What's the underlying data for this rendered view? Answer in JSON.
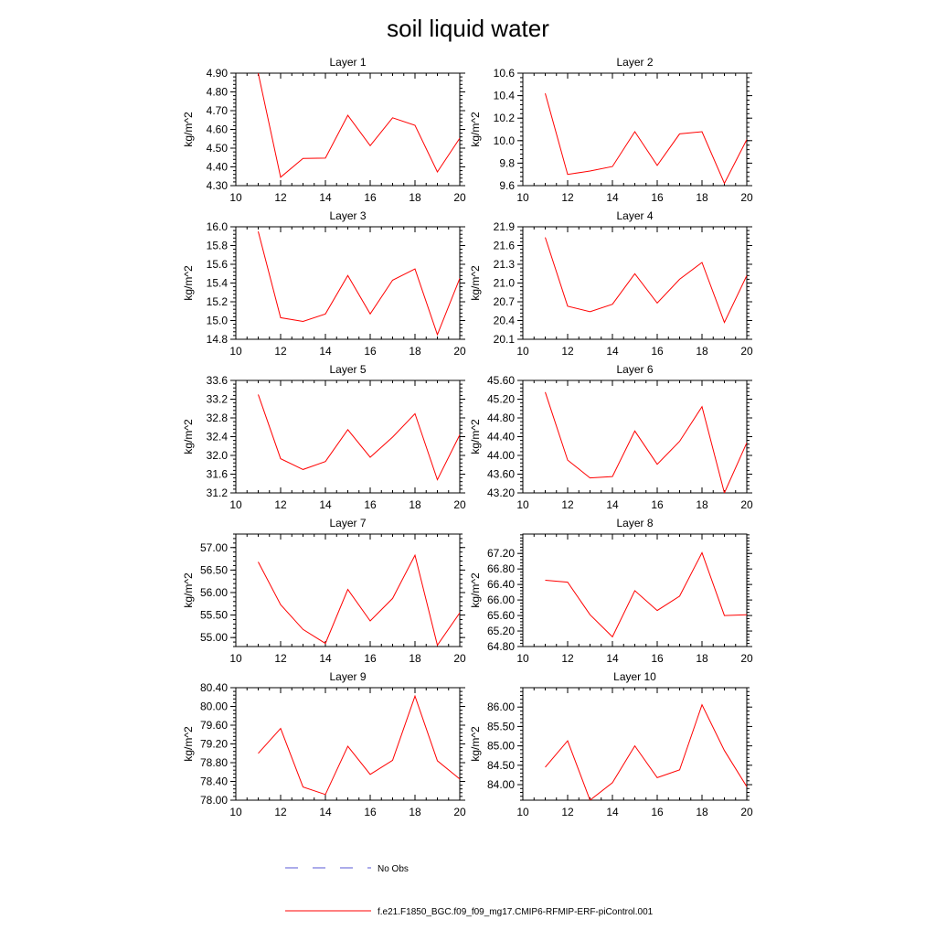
{
  "title": "soil liquid water",
  "ylabel": "kg/m^2",
  "line_color": "#ff0000",
  "obs_color": "#5a5ad6",
  "legend": {
    "no_obs_label": "No Obs",
    "run_label": "f.e21.F1850_BGC.f09_f09_mg17.CMIP6-RFMIP-ERF-piControl.001"
  },
  "chart_data": [
    {
      "type": "line",
      "subtitle": "Layer 1",
      "xlim": [
        10,
        20
      ],
      "ylim": [
        4.3,
        4.9
      ],
      "xticks": [
        "10",
        "12",
        "14",
        "16",
        "18",
        "20"
      ],
      "yticks": [
        "4.30",
        "4.40",
        "4.50",
        "4.60",
        "4.70",
        "4.80",
        "4.90"
      ],
      "x": [
        11,
        12,
        13,
        14,
        15,
        16,
        17,
        18,
        19,
        20
      ],
      "y": [
        4.9,
        4.345,
        4.445,
        4.447,
        4.675,
        4.513,
        4.662,
        4.622,
        4.373,
        4.553
      ]
    },
    {
      "type": "line",
      "subtitle": "Layer 2",
      "xlim": [
        10,
        20
      ],
      "ylim": [
        9.6,
        10.6
      ],
      "xticks": [
        "10",
        "12",
        "14",
        "16",
        "18",
        "20"
      ],
      "yticks": [
        "9.6",
        "9.8",
        "10.0",
        "10.2",
        "10.4",
        "10.6"
      ],
      "x": [
        11,
        12,
        13,
        14,
        15,
        16,
        17,
        18,
        19,
        20
      ],
      "y": [
        10.42,
        9.7,
        9.73,
        9.77,
        10.08,
        9.78,
        10.06,
        10.08,
        9.62,
        10.01
      ]
    },
    {
      "type": "line",
      "subtitle": "Layer 3",
      "xlim": [
        10,
        20
      ],
      "ylim": [
        14.8,
        16.0
      ],
      "xticks": [
        "10",
        "12",
        "14",
        "16",
        "18",
        "20"
      ],
      "yticks": [
        "14.8",
        "15.0",
        "15.2",
        "15.4",
        "15.6",
        "15.8",
        "16.0"
      ],
      "x": [
        11,
        12,
        13,
        14,
        15,
        16,
        17,
        18,
        19,
        20
      ],
      "y": [
        15.95,
        15.03,
        14.99,
        15.07,
        15.48,
        15.07,
        15.43,
        15.55,
        14.85,
        15.45
      ]
    },
    {
      "type": "line",
      "subtitle": "Layer 4",
      "xlim": [
        10,
        20
      ],
      "ylim": [
        20.1,
        21.9
      ],
      "xticks": [
        "10",
        "12",
        "14",
        "16",
        "18",
        "20"
      ],
      "yticks": [
        "20.1",
        "20.4",
        "20.7",
        "21.0",
        "21.3",
        "21.6",
        "21.9"
      ],
      "x": [
        11,
        12,
        13,
        14,
        15,
        16,
        17,
        18,
        19,
        20
      ],
      "y": [
        21.73,
        20.63,
        20.54,
        20.66,
        21.15,
        20.68,
        21.06,
        21.33,
        20.37,
        21.12
      ]
    },
    {
      "type": "line",
      "subtitle": "Layer 5",
      "xlim": [
        10,
        20
      ],
      "ylim": [
        31.2,
        33.6
      ],
      "xticks": [
        "10",
        "12",
        "14",
        "16",
        "18",
        "20"
      ],
      "yticks": [
        "31.2",
        "31.6",
        "32.0",
        "32.4",
        "32.8",
        "33.2",
        "33.6"
      ],
      "x": [
        11,
        12,
        13,
        14,
        15,
        16,
        17,
        18,
        19,
        20
      ],
      "y": [
        33.3,
        31.93,
        31.7,
        31.87,
        32.55,
        31.96,
        32.39,
        32.89,
        31.48,
        32.44
      ]
    },
    {
      "type": "line",
      "subtitle": "Layer 6",
      "xlim": [
        10,
        20
      ],
      "ylim": [
        43.2,
        45.6
      ],
      "xticks": [
        "10",
        "12",
        "14",
        "16",
        "18",
        "20"
      ],
      "yticks": [
        "43.20",
        "43.60",
        "44.00",
        "44.40",
        "44.80",
        "45.20",
        "45.60"
      ],
      "x": [
        11,
        12,
        13,
        14,
        15,
        16,
        17,
        18,
        19,
        20
      ],
      "y": [
        45.35,
        43.9,
        43.52,
        43.55,
        44.52,
        43.81,
        44.3,
        45.04,
        43.2,
        44.27
      ]
    },
    {
      "type": "line",
      "subtitle": "Layer 7",
      "xlim": [
        10,
        20
      ],
      "ylim": [
        54.8,
        57.3
      ],
      "xticks": [
        "10",
        "12",
        "14",
        "16",
        "18",
        "20"
      ],
      "yticks": [
        "55.00",
        "55.50",
        "56.00",
        "56.50",
        "57.00"
      ],
      "x": [
        11,
        12,
        13,
        14,
        15,
        16,
        17,
        18,
        19,
        20
      ],
      "y": [
        56.68,
        55.73,
        55.18,
        54.87,
        56.07,
        55.37,
        55.87,
        56.83,
        54.83,
        55.55
      ]
    },
    {
      "type": "line",
      "subtitle": "Layer 8",
      "xlim": [
        10,
        20
      ],
      "ylim": [
        64.8,
        67.7
      ],
      "xticks": [
        "10",
        "12",
        "14",
        "16",
        "18",
        "20"
      ],
      "yticks": [
        "64.80",
        "65.20",
        "65.60",
        "66.00",
        "66.40",
        "66.80",
        "67.20"
      ],
      "x": [
        11,
        12,
        13,
        14,
        15,
        16,
        17,
        18,
        19,
        20
      ],
      "y": [
        66.51,
        66.46,
        65.62,
        65.05,
        66.24,
        65.73,
        66.1,
        67.22,
        65.6,
        65.62
      ]
    },
    {
      "type": "line",
      "subtitle": "Layer 9",
      "xlim": [
        10,
        20
      ],
      "ylim": [
        78.0,
        80.4
      ],
      "xticks": [
        "10",
        "12",
        "14",
        "16",
        "18",
        "20"
      ],
      "yticks": [
        "78.00",
        "78.40",
        "78.80",
        "79.20",
        "79.60",
        "80.00",
        "80.40"
      ],
      "x": [
        11,
        12,
        13,
        14,
        15,
        16,
        17,
        18,
        19,
        20
      ],
      "y": [
        79.0,
        79.53,
        78.28,
        78.12,
        79.15,
        78.55,
        78.85,
        80.22,
        78.84,
        78.45
      ]
    },
    {
      "type": "line",
      "subtitle": "Layer 10",
      "xlim": [
        10,
        20
      ],
      "ylim": [
        83.6,
        86.5
      ],
      "xticks": [
        "10",
        "12",
        "14",
        "16",
        "18",
        "20"
      ],
      "yticks": [
        "84.00",
        "84.50",
        "85.00",
        "85.50",
        "86.00"
      ],
      "x": [
        11,
        12,
        13,
        14,
        15,
        16,
        17,
        18,
        19,
        20
      ],
      "y": [
        84.45,
        85.13,
        83.6,
        84.05,
        85.0,
        84.18,
        84.38,
        86.06,
        84.88,
        83.95
      ]
    }
  ]
}
